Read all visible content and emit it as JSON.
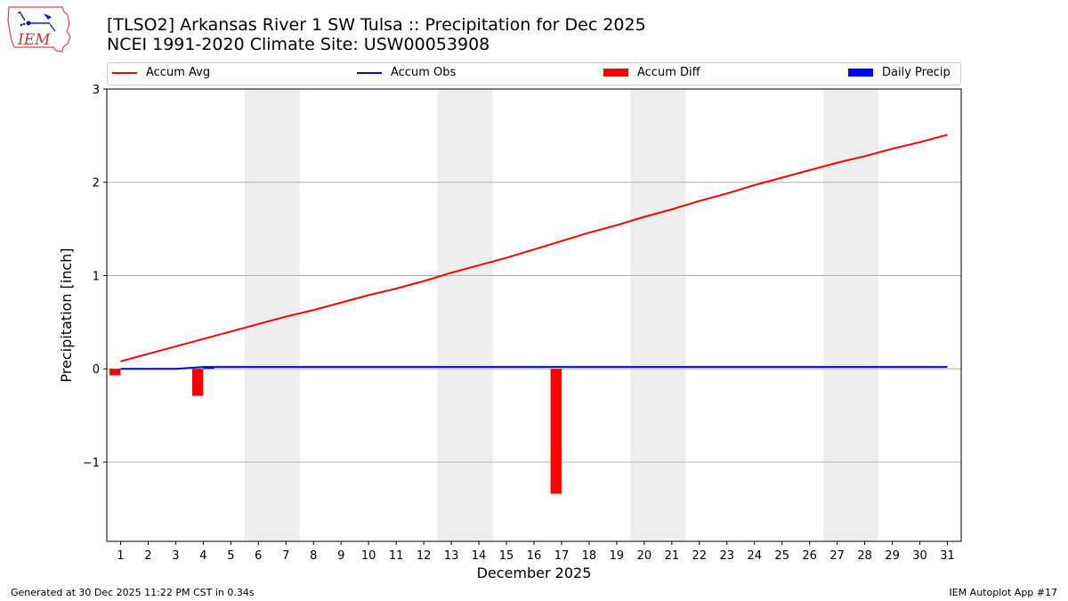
{
  "header": {
    "title_line1": "[TLSO2] Arkansas River 1 SW Tulsa :: Precipitation for Dec 2025",
    "title_line2": "NCEI 1991-2020 Climate Site: USW00053908",
    "logo_text": "IEM"
  },
  "legend": {
    "items": [
      {
        "label": "Accum Avg",
        "color": "#ff0000",
        "kind": "line"
      },
      {
        "label": "Accum Obs",
        "color": "#0000ff",
        "kind": "line"
      },
      {
        "label": "Accum Diff",
        "color": "#ff0000",
        "kind": "patch"
      },
      {
        "label": "Daily Precip",
        "color": "#0000ff",
        "kind": "patch"
      }
    ]
  },
  "footer": {
    "left": "Generated at 30 Dec 2025 11:22 PM CST in 0.34s",
    "right": "IEM Autoplot App #17"
  },
  "chart_data": {
    "type": "line",
    "title": "[TLSO2] Arkansas River 1 SW Tulsa :: Precipitation for Dec 2025",
    "xlabel": "December 2025",
    "ylabel": "Precipitation [inch]",
    "xlim": [
      0.5,
      31.5
    ],
    "ylim": [
      -1.85,
      3.0
    ],
    "yticks": [
      -1,
      0,
      1,
      2,
      3
    ],
    "ytick_labels": [
      "−1",
      "0",
      "1",
      "2",
      "3"
    ],
    "x": [
      1,
      2,
      3,
      4,
      5,
      6,
      7,
      8,
      9,
      10,
      11,
      12,
      13,
      14,
      15,
      16,
      17,
      18,
      19,
      20,
      21,
      22,
      23,
      24,
      25,
      26,
      27,
      28,
      29,
      30,
      31
    ],
    "grid": "horizontal",
    "weekend_shading": [
      [
        5.5,
        7.5
      ],
      [
        12.5,
        14.5
      ],
      [
        19.5,
        21.5
      ],
      [
        26.5,
        28.5
      ]
    ],
    "series": [
      {
        "name": "Accum Avg",
        "type": "line",
        "color": "#ff0000",
        "values": [
          0.08,
          0.16,
          0.24,
          0.32,
          0.4,
          0.48,
          0.56,
          0.63,
          0.71,
          0.79,
          0.86,
          0.94,
          1.03,
          1.11,
          1.19,
          1.28,
          1.37,
          1.46,
          1.54,
          1.63,
          1.71,
          1.8,
          1.88,
          1.97,
          2.05,
          2.13,
          2.21,
          2.28,
          2.36,
          2.43,
          2.51
        ]
      },
      {
        "name": "Accum Obs",
        "type": "line",
        "color": "#0000ff",
        "values": [
          0.0,
          0.0,
          0.0,
          0.02,
          0.02,
          0.02,
          0.02,
          0.02,
          0.02,
          0.02,
          0.02,
          0.02,
          0.02,
          0.02,
          0.02,
          0.02,
          0.02,
          0.02,
          0.02,
          0.02,
          0.02,
          0.02,
          0.02,
          0.02,
          0.02,
          0.02,
          0.02,
          0.02,
          0.02,
          0.02,
          0.02
        ]
      },
      {
        "name": "Accum Diff",
        "type": "bar",
        "color": "#ff0000",
        "values": {
          "1": -0.07,
          "4": -0.29,
          "17": -1.34
        }
      },
      {
        "name": "Daily Precip",
        "type": "bar",
        "color": "#0000ff",
        "values": {
          "1": 0.005,
          "4": 0.02
        }
      }
    ]
  }
}
